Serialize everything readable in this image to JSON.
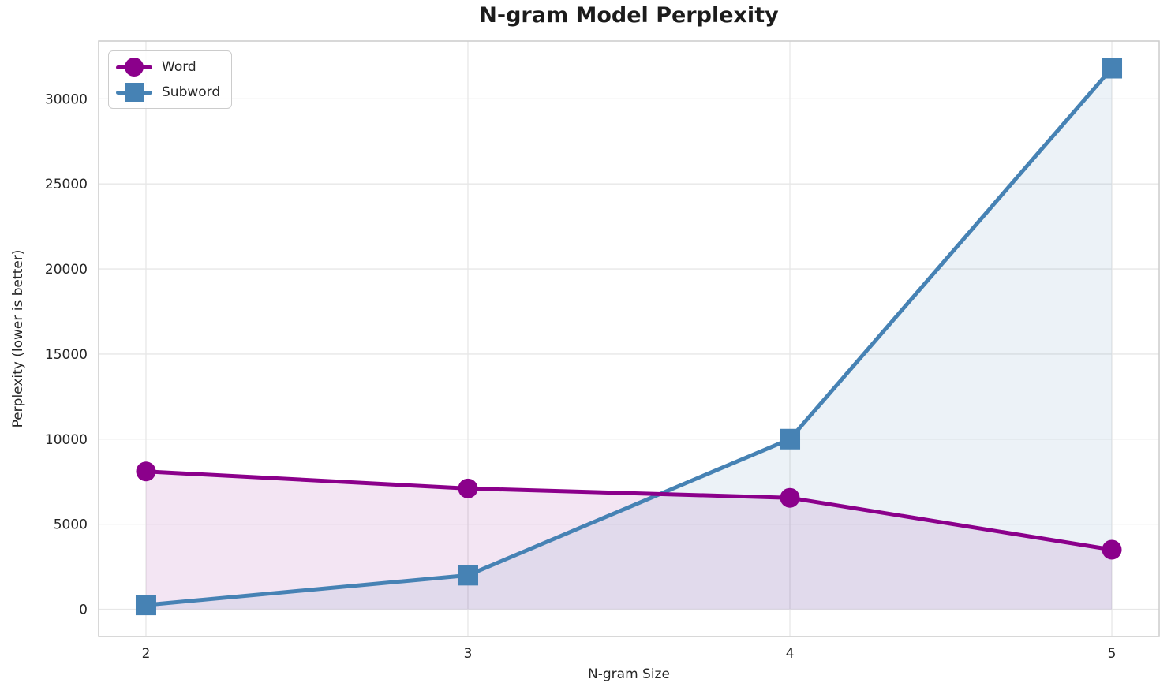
{
  "title": "N-gram Model Perplexity",
  "chart_data": {
    "type": "line",
    "title": "N-gram Model Perplexity",
    "xlabel": "N-gram Size",
    "ylabel": "Perplexity (lower is better)",
    "x": [
      2,
      3,
      4,
      5
    ],
    "series": [
      {
        "name": "Word",
        "values": [
          8100,
          7100,
          6550,
          3500
        ],
        "color": "#8B008B",
        "marker": "circle"
      },
      {
        "name": "Subword",
        "values": [
          250,
          2000,
          10000,
          31800
        ],
        "color": "#4682B4",
        "marker": "square"
      }
    ],
    "xticks": [
      2,
      3,
      4,
      5
    ],
    "yticks": [
      0,
      5000,
      10000,
      15000,
      20000,
      25000,
      30000
    ],
    "xlim": [
      1.853,
      5.147
    ],
    "ylim": [
      -1600,
      33400
    ],
    "fill_to_zero": true,
    "fill_alpha": 0.1,
    "grid": true,
    "grid_color": "#e7e7e7",
    "spine_color": "#cccccc",
    "tick_color": "#262626",
    "legend_position": "upper left"
  }
}
